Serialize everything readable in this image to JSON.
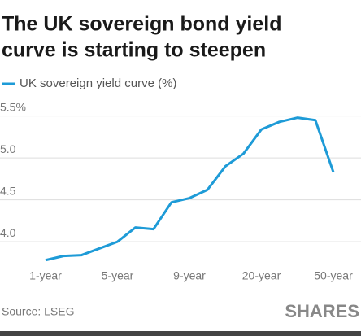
{
  "chart_data": {
    "type": "line",
    "title": [
      "The UK sovereign bond yield",
      "curve is starting to steepen"
    ],
    "categories": [
      "1-year",
      null,
      null,
      null,
      "5-year",
      null,
      null,
      null,
      "9-year",
      null,
      null,
      null,
      "20-year",
      null,
      null,
      null,
      "50-year"
    ],
    "series": [
      {
        "name": "UK sovereign yield curve (%)",
        "color": "#1e9bd7",
        "values": [
          3.78,
          3.83,
          3.84,
          3.92,
          4.0,
          4.17,
          4.15,
          4.47,
          4.52,
          4.62,
          4.9,
          5.05,
          5.34,
          5.43,
          5.48,
          5.45,
          4.83
        ]
      }
    ],
    "ylim": [
      3.7,
      5.7
    ],
    "yticks": [
      {
        "value": 4,
        "label": "4.0"
      },
      4.5,
      {
        "value": 5,
        "label": "5.0"
      },
      {
        "value": 5.5,
        "label": "5.5%"
      }
    ],
    "grid": true,
    "source": "Source: LSEG",
    "brand": "SHARES"
  }
}
